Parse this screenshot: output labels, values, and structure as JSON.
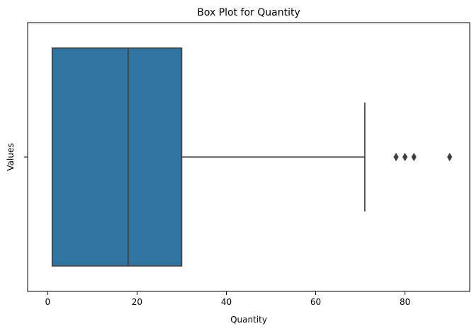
{
  "chart_data": {
    "type": "box",
    "title": "Box Plot for Quantity",
    "xlabel": "Quantity",
    "ylabel": "Values",
    "xlim": [
      -4.5,
      94.5
    ],
    "x_ticks": [
      0,
      20,
      40,
      60,
      80
    ],
    "x_tick_labels": [
      "0",
      "20",
      "40",
      "60",
      "80"
    ],
    "y_tick_labels": [
      ""
    ],
    "grid": false,
    "series": [
      {
        "q1": 1,
        "median": 18,
        "q3": 30,
        "whisker_low": 1,
        "whisker_high": 71,
        "outliers": [
          78,
          80,
          82,
          90
        ],
        "color": "#3274a1"
      }
    ]
  }
}
